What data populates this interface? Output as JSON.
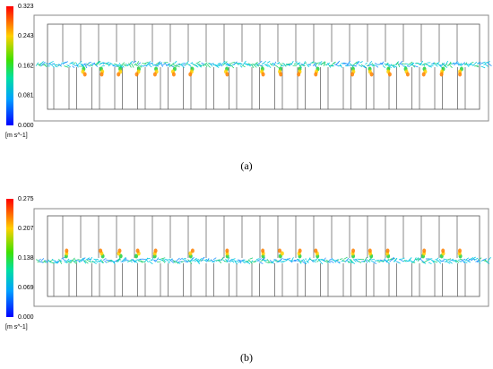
{
  "panels": [
    {
      "colorbar_ticks": [
        "0.323",
        "0.243",
        "0.162",
        "0.081",
        "0.000"
      ],
      "unit": "[m s^-1]",
      "caption": "(a)"
    },
    {
      "colorbar_ticks": [
        "0.275",
        "0.207",
        "0.138",
        "0.069",
        "0.000"
      ],
      "unit": "[m s^-1]",
      "caption": "(b)"
    }
  ]
}
